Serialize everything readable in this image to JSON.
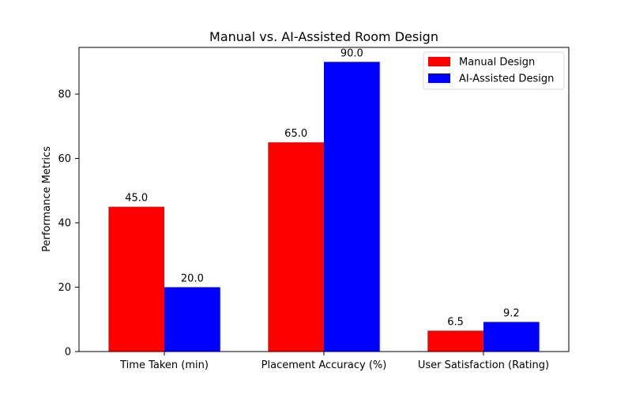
{
  "chart_data": {
    "type": "bar",
    "title": "Manual vs. AI-Assisted Room Design",
    "xlabel": "",
    "ylabel": "Performance Metrics",
    "categories": [
      "Time Taken (min)",
      "Placement Accuracy (%)",
      "User Satisfaction (Rating)"
    ],
    "series": [
      {
        "name": "Manual Design",
        "color": "#ff0000",
        "values": [
          45.0,
          65.0,
          6.5
        ],
        "labels": [
          "45.0",
          "65.0",
          "6.5"
        ]
      },
      {
        "name": "AI-Assisted Design",
        "color": "#0000ff",
        "values": [
          20.0,
          90.0,
          9.2
        ],
        "labels": [
          "20.0",
          "90.0",
          "9.2"
        ]
      }
    ],
    "ylim": [
      0,
      94.5
    ],
    "yticks": [
      0,
      20,
      40,
      60,
      80
    ],
    "ytick_labels": [
      "0",
      "20",
      "40",
      "60",
      "80"
    ],
    "grid": false,
    "legend_position": "top-right"
  }
}
